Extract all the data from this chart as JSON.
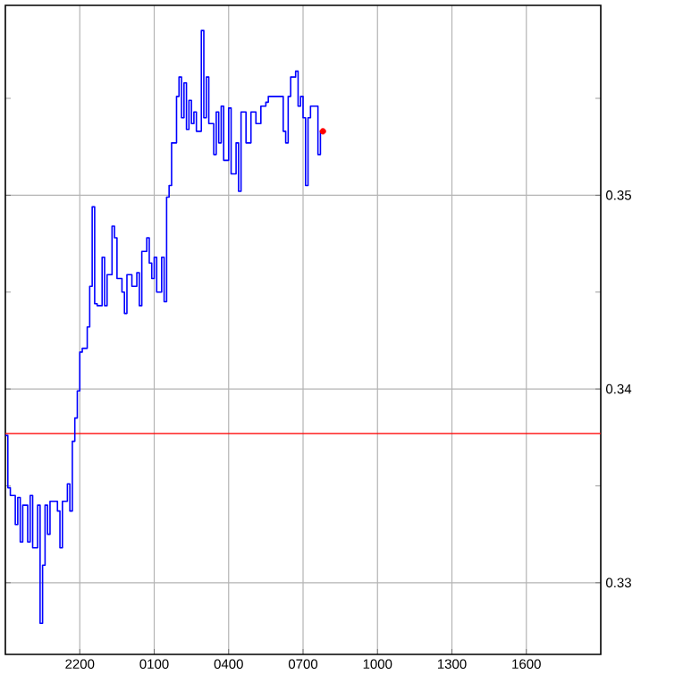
{
  "chart_data": {
    "type": "step",
    "ylim": [
      0.3263,
      0.3598
    ],
    "categories": [
      null,
      null,
      null,
      null,
      null,
      null,
      null,
      null,
      null,
      null,
      null,
      null,
      null,
      null,
      null,
      null,
      null,
      null,
      null,
      null,
      null,
      null,
      null,
      null,
      null,
      null,
      null,
      null,
      null,
      null,
      "2200",
      null,
      null,
      null,
      null,
      null,
      null,
      null,
      null,
      null,
      null,
      null,
      null,
      null,
      null,
      null,
      null,
      null,
      null,
      null,
      null,
      null,
      null,
      null,
      null,
      null,
      null,
      null,
      null,
      null,
      "0100",
      null,
      null,
      null,
      null,
      null,
      null,
      null,
      null,
      null,
      null,
      null,
      null,
      null,
      null,
      null,
      null,
      null,
      null,
      null,
      null,
      null,
      null,
      null,
      null,
      null,
      null,
      null,
      null,
      null,
      "0400",
      null,
      null,
      null,
      null,
      null,
      null,
      null,
      null,
      null,
      null,
      null,
      null,
      null,
      null,
      null,
      null,
      null,
      null,
      null,
      null,
      null,
      null,
      null,
      null,
      null,
      null,
      null,
      null,
      null,
      "0700",
      null,
      null,
      null,
      null,
      null,
      null,
      null,
      null,
      null,
      null,
      null,
      null,
      null,
      null,
      null,
      null,
      null,
      null,
      null,
      null,
      null,
      null,
      null,
      null,
      null,
      null,
      null,
      null,
      null,
      "1000",
      null,
      null,
      null,
      null,
      null,
      null,
      null,
      null,
      null,
      null,
      null,
      null,
      null,
      null,
      null,
      null,
      null,
      null,
      null,
      null,
      null,
      null,
      null,
      null,
      null,
      null,
      null,
      null,
      null,
      "1300",
      null,
      null,
      null,
      null,
      null,
      null,
      null,
      null,
      null,
      null,
      null,
      null,
      null,
      null,
      null,
      null,
      null,
      null,
      null,
      null,
      null,
      null,
      null,
      null,
      null,
      null,
      null,
      null,
      null,
      "1600",
      null,
      null,
      null,
      null,
      null,
      null,
      null,
      null,
      null,
      null,
      null,
      null,
      null,
      null,
      null,
      null,
      null,
      null,
      null,
      null,
      null,
      null,
      null,
      null,
      null,
      null,
      null,
      null,
      null
    ],
    "yticks": [
      0.33,
      {
        "value": 0.335,
        "label": null
      },
      0.34,
      {
        "value": 0.345,
        "label": null
      },
      0.35,
      {
        "value": 0.355,
        "label": null
      }
    ],
    "grid": true,
    "ref_lines": [
      {
        "axis": "y",
        "value": 0.3377,
        "color": "#ff0000"
      }
    ],
    "series": [
      {
        "color": "#0000ff",
        "values": [
          0.3376,
          0.3349,
          0.3345,
          0.3345,
          0.333,
          0.3344,
          0.3321,
          0.334,
          0.334,
          0.3321,
          0.3345,
          0.3318,
          0.3318,
          0.334,
          0.3279,
          0.3309,
          0.334,
          0.3325,
          0.3342,
          0.3342,
          0.3342,
          0.3337,
          0.3318,
          0.3342,
          0.3342,
          0.3351,
          0.3337,
          0.3373,
          0.3385,
          0.3399,
          0.3419,
          0.3421,
          0.3421,
          0.3432,
          0.3453,
          0.3494,
          0.3444,
          0.3443,
          0.3443,
          0.3468,
          0.3443,
          0.3459,
          0.3459,
          0.3484,
          0.3478,
          0.3457,
          0.3457,
          0.345,
          0.3439,
          0.3459,
          0.3459,
          0.3453,
          0.3453,
          0.346,
          0.3443,
          0.3471,
          0.3471,
          0.3478,
          0.3465,
          0.3457,
          0.3468,
          0.345,
          0.345,
          0.3468,
          0.3445,
          0.3499,
          0.3505,
          0.3527,
          0.3527,
          0.3551,
          0.3561,
          0.354,
          0.3558,
          0.3534,
          0.3549,
          0.3537,
          0.3543,
          0.3533,
          0.3533,
          0.3585,
          0.354,
          0.3561,
          0.3537,
          0.3537,
          0.3521,
          0.3543,
          0.3527,
          0.3546,
          0.3518,
          0.3518,
          0.3545,
          0.3511,
          0.3511,
          0.3527,
          0.3502,
          0.3543,
          0.3543,
          0.3527,
          0.3527,
          0.3543,
          0.3543,
          0.3537,
          0.3537,
          0.3546,
          0.3546,
          0.3548,
          0.3551,
          0.3551,
          0.3551,
          0.3551,
          0.3551,
          0.3551,
          0.3533,
          0.3527,
          0.3551,
          0.3561,
          0.3561,
          0.3564,
          0.3546,
          0.3551,
          0.354,
          0.3505,
          0.354,
          0.3546,
          0.3546,
          0.3546,
          0.3521,
          0.3533,
          0.3533,
          null,
          null,
          null,
          null,
          null,
          null,
          null,
          null,
          null,
          null,
          null,
          null,
          null,
          null,
          null,
          null,
          null,
          null,
          null,
          null,
          null,
          null,
          null,
          null,
          null,
          null,
          null,
          null,
          null,
          null,
          null,
          null,
          null,
          null,
          null,
          null,
          null,
          null,
          null,
          null,
          null,
          null,
          null,
          null,
          null,
          null,
          null,
          null,
          null,
          null,
          null,
          null,
          null,
          null,
          null,
          null,
          null,
          null,
          null,
          null,
          null,
          null,
          null,
          null,
          null,
          null,
          null,
          null,
          null,
          null,
          null,
          null,
          null,
          null,
          null,
          null,
          null,
          null,
          null,
          null,
          null,
          null,
          null,
          null,
          null,
          null,
          null,
          null,
          null,
          null,
          null,
          null,
          null,
          null,
          null,
          null,
          null,
          null,
          null,
          null,
          null,
          null,
          null,
          null,
          null,
          null,
          null,
          null,
          null,
          null,
          null
        ]
      },
      {
        "type": "scatter",
        "color": "#ff0000",
        "marker": "circle",
        "values": [
          null,
          null,
          null,
          null,
          null,
          null,
          null,
          null,
          null,
          null,
          null,
          null,
          null,
          null,
          null,
          null,
          null,
          null,
          null,
          null,
          null,
          null,
          null,
          null,
          null,
          null,
          null,
          null,
          null,
          null,
          null,
          null,
          null,
          null,
          null,
          null,
          null,
          null,
          null,
          null,
          null,
          null,
          null,
          null,
          null,
          null,
          null,
          null,
          null,
          null,
          null,
          null,
          null,
          null,
          null,
          null,
          null,
          null,
          null,
          null,
          null,
          null,
          null,
          null,
          null,
          null,
          null,
          null,
          null,
          null,
          null,
          null,
          null,
          null,
          null,
          null,
          null,
          null,
          null,
          null,
          null,
          null,
          null,
          null,
          null,
          null,
          null,
          null,
          null,
          null,
          null,
          null,
          null,
          null,
          null,
          null,
          null,
          null,
          null,
          null,
          null,
          null,
          null,
          null,
          null,
          null,
          null,
          null,
          null,
          null,
          null,
          null,
          null,
          null,
          null,
          null,
          null,
          null,
          null,
          null,
          null,
          null,
          null,
          null,
          null,
          null,
          null,
          null,
          0.3533,
          null,
          null,
          null,
          null,
          null,
          null,
          null,
          null,
          null,
          null,
          null,
          null,
          null,
          null,
          null,
          null,
          null,
          null,
          null,
          null,
          null,
          null,
          null,
          null,
          null,
          null,
          null,
          null,
          null,
          null,
          null,
          null,
          null,
          null,
          null,
          null,
          null,
          null,
          null,
          null,
          null,
          null,
          null,
          null,
          null,
          null,
          null,
          null,
          null,
          null,
          null,
          null,
          null,
          null,
          null,
          null,
          null,
          null,
          null,
          null,
          null,
          null,
          null,
          null,
          null,
          null,
          null,
          null,
          null,
          null,
          null,
          null,
          null,
          null,
          null,
          null,
          null,
          null,
          null,
          null,
          null,
          null,
          null,
          null,
          null,
          null,
          null,
          null,
          null,
          null,
          null,
          null,
          null,
          null,
          null,
          null,
          null,
          null,
          null,
          null,
          null,
          null,
          null,
          null,
          null,
          null,
          null,
          null,
          null,
          null,
          null
        ]
      }
    ]
  }
}
